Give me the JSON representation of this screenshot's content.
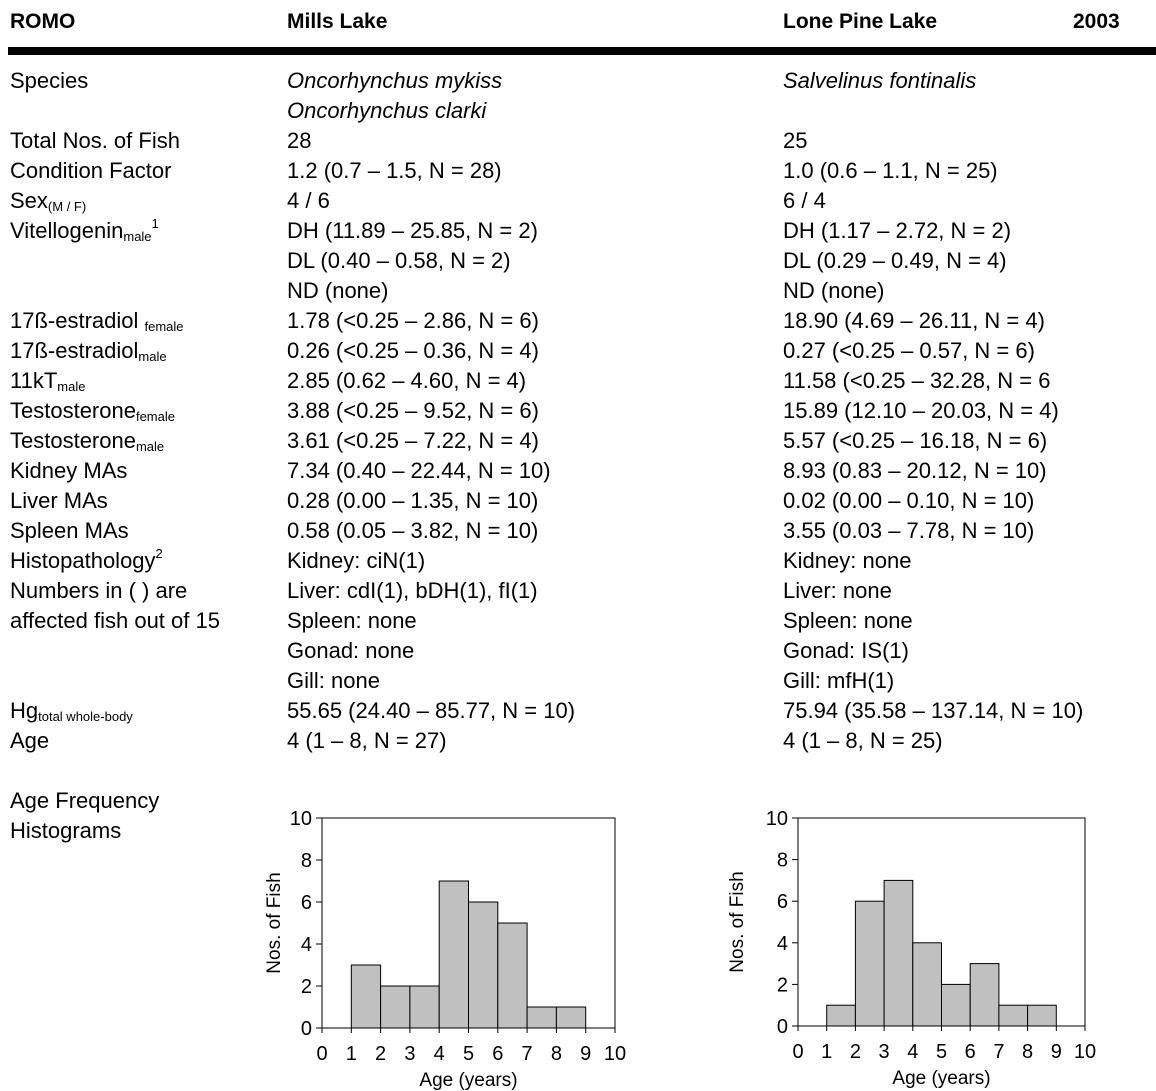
{
  "header": {
    "park": "ROMO",
    "lake1": "Mills Lake",
    "lake2": "Lone Pine Lake",
    "year": "2003"
  },
  "rows": {
    "species": {
      "label": "Species",
      "lake1": [
        "Oncorhynchus   mykiss",
        "Oncorhynchus clarki"
      ],
      "lake2": [
        "Salvelinus fontinalis"
      ]
    },
    "total": {
      "label": "Total Nos. of Fish",
      "lake1": "28",
      "lake2": "25"
    },
    "condition": {
      "label": "Condition Factor",
      "lake1": "1.2 (0.7 – 1.5, N = 28)",
      "lake2": "1.0 (0.6 – 1.1, N = 25)"
    },
    "sex": {
      "label": "Sex",
      "sub": "(M / F)",
      "lake1": "4 / 6",
      "lake2": "6 / 4"
    },
    "vtg": {
      "label": "Vitellogenin",
      "sub": "male",
      "sup": "1",
      "lake1": [
        "DH (11.89 – 25.85, N = 2)",
        "DL (0.40 – 0.58, N = 2)",
        "ND (none)"
      ],
      "lake2": [
        "DH (1.17 – 2.72, N = 2)",
        "DL (0.29 – 0.49, N = 4)",
        "ND (none)"
      ]
    },
    "e2f": {
      "label": "17ß-estradiol ",
      "sub": "female",
      "lake1": "1.78 (<0.25 – 2.86, N = 6)",
      "lake2": "18.90 (4.69 – 26.11, N = 4)"
    },
    "e2m": {
      "label": "17ß-estradiol",
      "sub": "male",
      "lake1": "0.26 (<0.25 – 0.36, N = 4)",
      "lake2": "0.27 (<0.25 – 0.57, N = 6)"
    },
    "kt": {
      "label": "11kT",
      "sub": "male",
      "lake1": "2.85 (0.62 – 4.60, N = 4)",
      "lake2": "11.58 (<0.25 – 32.28, N = 6"
    },
    "tf": {
      "label": "Testosterone",
      "sub": "female",
      "lake1": "3.88 (<0.25 – 9.52, N = 6)",
      "lake2": "15.89 (12.10 – 20.03, N = 4)"
    },
    "tm": {
      "label": "Testosterone",
      "sub": "male",
      "lake1": "3.61 (<0.25 – 7.22, N = 4)",
      "lake2": "5.57 (<0.25 – 16.18, N = 6)"
    },
    "kidney": {
      "label": "Kidney MAs",
      "lake1": "7.34 (0.40 – 22.44, N = 10)",
      "lake2": "8.93 (0.83 – 20.12, N = 10)"
    },
    "liver": {
      "label": "Liver MAs",
      "lake1": "0.28 (0.00 – 1.35, N = 10)",
      "lake2": "0.02 (0.00 – 0.10, N = 10)"
    },
    "spleen": {
      "label": "Spleen MAs",
      "lake1": "0.58 (0.05 – 3.82, N = 10)",
      "lake2": "3.55 (0.03 – 7.78, N = 10)"
    },
    "histo": {
      "label": "Histopathology",
      "sup": "2",
      "label2": "Numbers in ( ) are",
      "label3": "affected fish out of 15",
      "lake1": [
        "Kidney: ciN(1)",
        "Liver: cdI(1), bDH(1), fI(1)",
        "Spleen:  none",
        "Gonad:  none",
        "Gill: none"
      ],
      "lake2": [
        "Kidney: none",
        "Liver: none",
        "Spleen: none",
        "Gonad: IS(1)",
        "Gill: mfH(1)"
      ]
    },
    "hg": {
      "label": "Hg",
      "sub": "total whole-body",
      "lake1": "55.65 (24.40 – 85.77, N = 10)",
      "lake2": "75.94 (35.58 – 137.14, N = 10)"
    },
    "age": {
      "label": "Age",
      "lake1": "4 (1 – 8, N = 27)",
      "lake2": "4 (1 – 8, N = 25)"
    },
    "hist_label": [
      "Age Frequency",
      "Histograms"
    ]
  },
  "chart_data": [
    {
      "type": "bar",
      "xlabel": "Age (years)",
      "ylabel": "Nos. of Fish",
      "xlim": [
        0,
        10
      ],
      "ylim": [
        0,
        10
      ],
      "xticks": [
        "0",
        "1",
        "2",
        "3",
        "4",
        "5",
        "6",
        "7",
        "8",
        "9",
        "10"
      ],
      "yticks": [
        "0",
        "2",
        "4",
        "6",
        "8",
        "10"
      ],
      "bins": [
        [
          1,
          2
        ],
        [
          2,
          3
        ],
        [
          3,
          4
        ],
        [
          4,
          5
        ],
        [
          5,
          6
        ],
        [
          6,
          7
        ],
        [
          7,
          8
        ],
        [
          8,
          9
        ]
      ],
      "values": [
        3,
        2,
        2,
        7,
        6,
        5,
        1,
        1
      ],
      "bar_color": "#c0c0c0"
    },
    {
      "type": "bar",
      "xlabel": "Age (years)",
      "ylabel": "Nos. of Fish",
      "xlim": [
        0,
        10
      ],
      "ylim": [
        0,
        10
      ],
      "xticks": [
        "0",
        "1",
        "2",
        "3",
        "4",
        "5",
        "6",
        "7",
        "8",
        "9",
        "10"
      ],
      "yticks": [
        "0",
        "2",
        "4",
        "6",
        "8",
        "10"
      ],
      "bins": [
        [
          1,
          2
        ],
        [
          2,
          3
        ],
        [
          3,
          4
        ],
        [
          4,
          5
        ],
        [
          5,
          6
        ],
        [
          6,
          7
        ],
        [
          7,
          8
        ],
        [
          8,
          9
        ]
      ],
      "values": [
        1,
        6,
        7,
        4,
        2,
        3,
        1,
        1
      ],
      "bar_color": "#c0c0c0"
    }
  ]
}
